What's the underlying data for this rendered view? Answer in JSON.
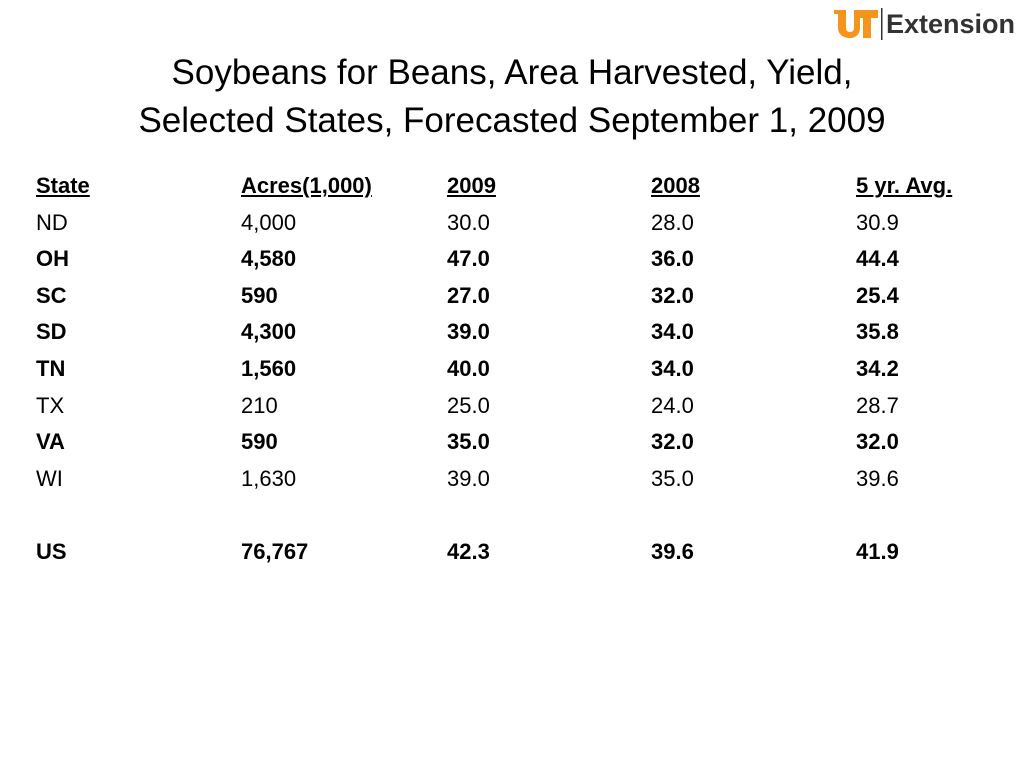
{
  "logo": {
    "brand_mark": "UT",
    "text": "Extension",
    "brand_color": "#f7941d",
    "text_color": "#333333"
  },
  "title": {
    "line1": "Soybeans for Beans, Area Harvested, Yield,",
    "line2": "Selected States, Forecasted September 1, 2009"
  },
  "table": {
    "headers": [
      "State",
      "Acres(1,000)",
      "2009",
      "2008",
      "5 yr. Avg."
    ],
    "rows": [
      {
        "bold": false,
        "cells": [
          "ND",
          "4,000",
          "30.0",
          "28.0",
          "30.9"
        ]
      },
      {
        "bold": true,
        "cells": [
          "OH",
          "4,580",
          "47.0",
          "36.0",
          "44.4"
        ]
      },
      {
        "bold": true,
        "cells": [
          "SC",
          "590",
          "27.0",
          "32.0",
          "25.4"
        ]
      },
      {
        "bold": true,
        "cells": [
          "SD",
          "4,300",
          "39.0",
          "34.0",
          "35.8"
        ]
      },
      {
        "bold": true,
        "cells": [
          "TN",
          "1,560",
          "40.0",
          "34.0",
          "34.2"
        ]
      },
      {
        "bold": false,
        "cells": [
          "TX",
          "210",
          "25.0",
          "24.0",
          "28.7"
        ]
      },
      {
        "bold": true,
        "cells": [
          "VA",
          "590",
          "35.0",
          "32.0",
          "32.0"
        ]
      },
      {
        "bold": false,
        "cells": [
          "WI",
          "1,630",
          "39.0",
          "35.0",
          "39.6"
        ]
      }
    ],
    "total": {
      "bold": true,
      "cells": [
        "US",
        "76,767",
        "42.3",
        "39.6",
        "41.9"
      ]
    }
  }
}
